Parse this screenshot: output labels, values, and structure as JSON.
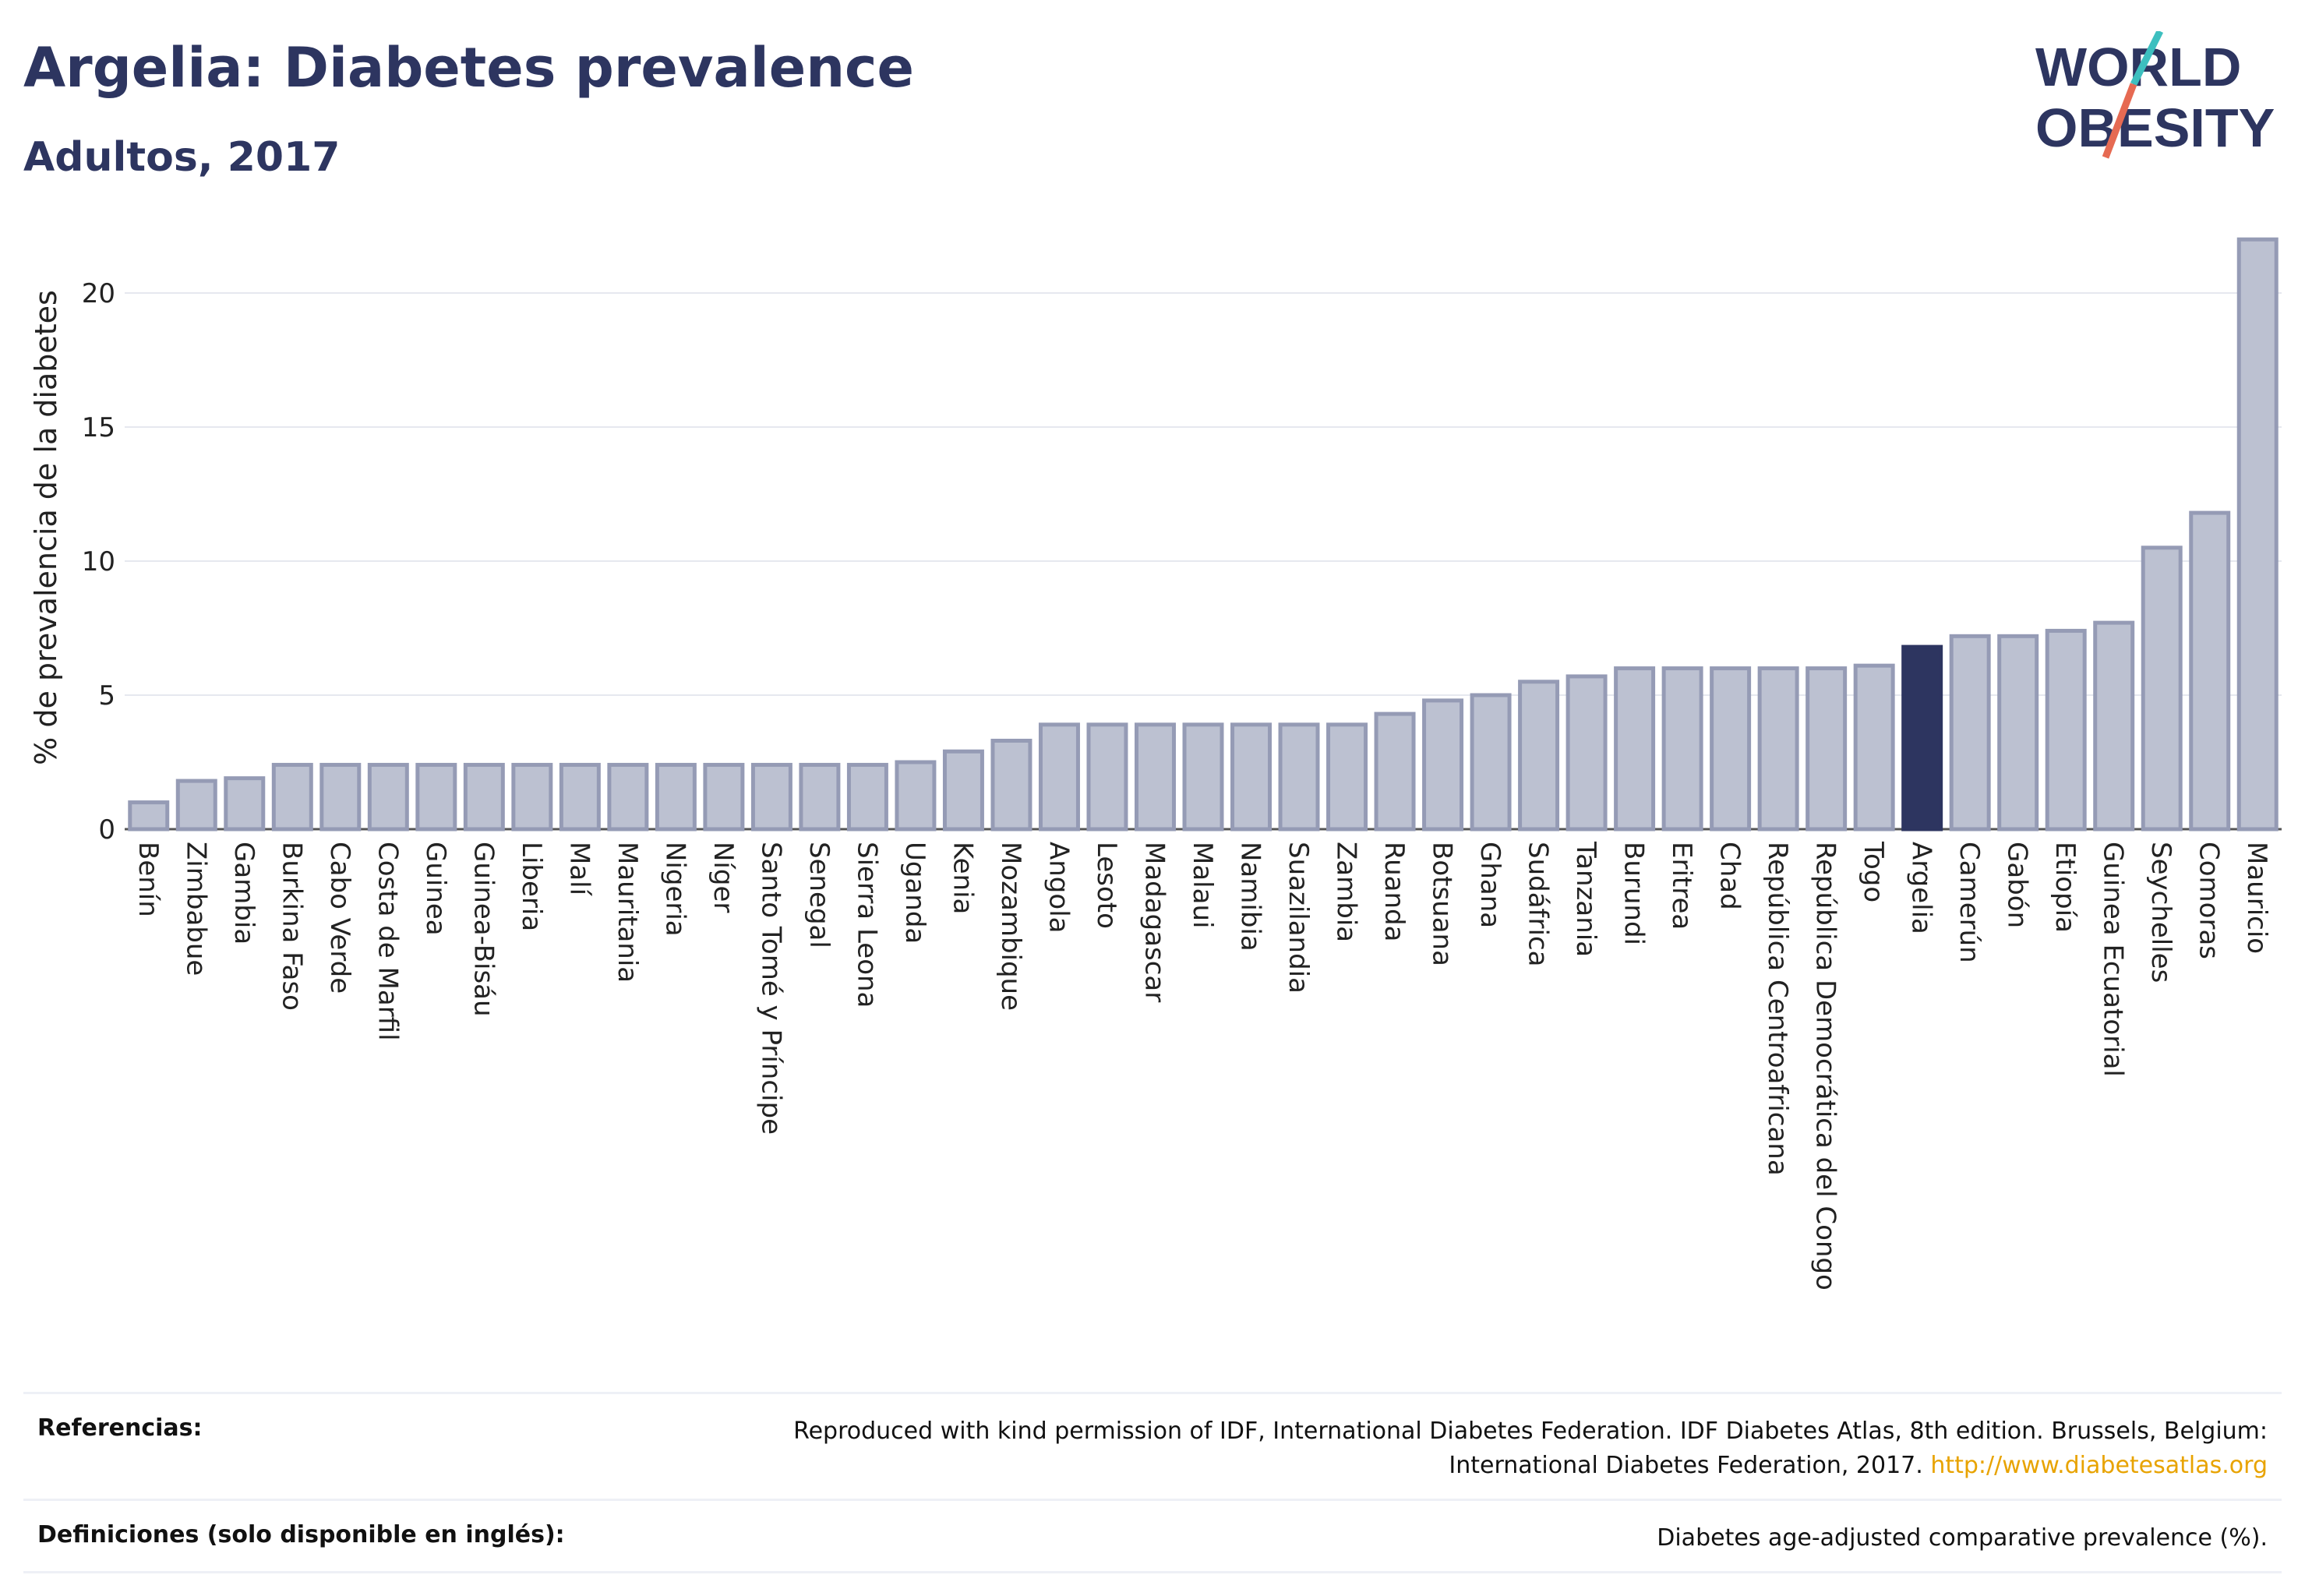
{
  "header": {
    "title": "Argelia: Diabetes prevalence",
    "subtitle": "Adultos, 2017"
  },
  "logo": {
    "line1": "WORLD",
    "line2": "OBESITY",
    "accent_colors": [
      "#3dbfbf",
      "#e66a52"
    ]
  },
  "colors": {
    "bar": "#bcc1d1",
    "bar_stroke": "#959bb5",
    "highlight": "#2d3560",
    "title": "#2d3560",
    "link": "#e8a300"
  },
  "chart_data": {
    "type": "bar",
    "ylabel": "% de prevalencia de la diabetes",
    "xlabel": "",
    "ylim": [
      0,
      22.5
    ],
    "yticks": [
      0,
      5,
      10,
      15,
      20
    ],
    "grid": true,
    "highlight": "Argelia",
    "categories": [
      "Benín",
      "Zimbabue",
      "Gambia",
      "Burkina Faso",
      "Cabo Verde",
      "Costa de Marfil",
      "Guinea",
      "Guinea-Bisáu",
      "Liberia",
      "Malí",
      "Mauritania",
      "Nigeria",
      "Níger",
      "Santo Tomé y Príncipe",
      "Senegal",
      "Sierra Leona",
      "Uganda",
      "Kenia",
      "Mozambique",
      "Angola",
      "Lesoto",
      "Madagascar",
      "Malaui",
      "Namibia",
      "Suazilandia",
      "Zambia",
      "Ruanda",
      "Botsuana",
      "Ghana",
      "Sudáfrica",
      "Tanzania",
      "Burundi",
      "Eritrea",
      "Chad",
      "República Centroafricana",
      "República Democrática del Congo",
      "Togo",
      "Argelia",
      "Camerún",
      "Gabón",
      "Etiopía",
      "Guinea Ecuatorial",
      "Seychelles",
      "Comoras",
      "Mauricio"
    ],
    "values": [
      1.0,
      1.8,
      1.9,
      2.4,
      2.4,
      2.4,
      2.4,
      2.4,
      2.4,
      2.4,
      2.4,
      2.4,
      2.4,
      2.4,
      2.4,
      2.4,
      2.5,
      2.9,
      3.3,
      3.9,
      3.9,
      3.9,
      3.9,
      3.9,
      3.9,
      3.9,
      4.3,
      4.8,
      5.0,
      5.5,
      5.7,
      6.0,
      6.0,
      6.0,
      6.0,
      6.0,
      6.1,
      6.8,
      7.2,
      7.2,
      7.4,
      7.7,
      10.5,
      11.8,
      22.0
    ]
  },
  "references": {
    "ref_label": "Referencias:",
    "ref_text": "Reproduced with kind permission of IDF, International Diabetes Federation. IDF Diabetes Atlas, 8th edition. Brussels, Belgium: International Diabetes Federation, 2017.",
    "ref_link": "http://www.diabetesatlas.org",
    "def_label": "Definiciones (solo disponible en inglés):",
    "def_text": "Diabetes age-adjusted comparative prevalence (%)."
  }
}
